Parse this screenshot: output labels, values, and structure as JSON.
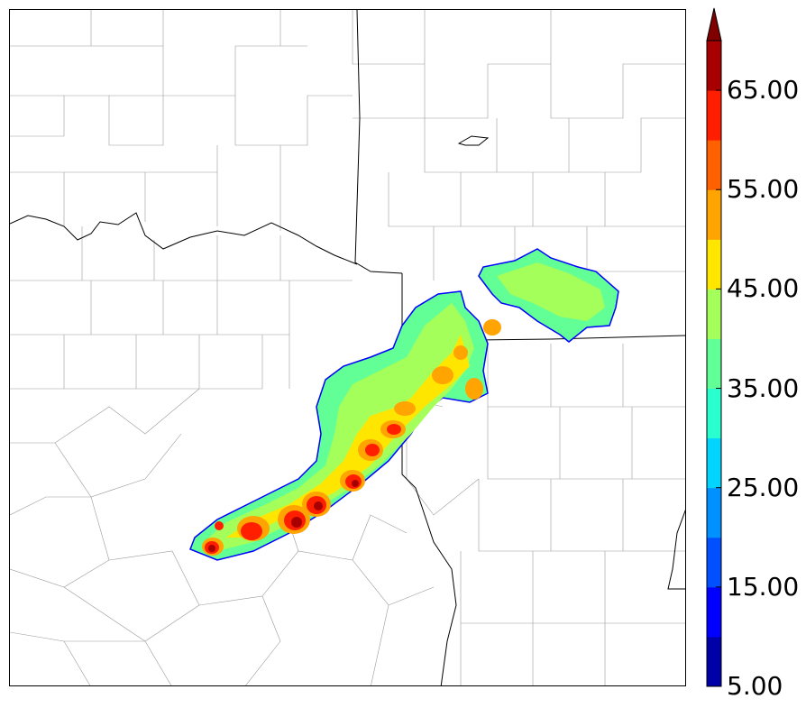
{
  "colorbar": {
    "tick_labels": [
      "5.00",
      "15.00",
      "25.00",
      "35.00",
      "45.00",
      "55.00",
      "65.00"
    ],
    "levels": [
      5,
      10,
      15,
      20,
      25,
      30,
      35,
      40,
      45,
      50,
      55,
      60,
      65,
      70
    ],
    "colors": [
      "#0000a8",
      "#0000ff",
      "#0050ff",
      "#0090ff",
      "#00d4ff",
      "#29ffce",
      "#62ff96",
      "#a5ff5a",
      "#ffe600",
      "#ffa400",
      "#ff6000",
      "#ff1e00",
      "#a80000"
    ],
    "extend_color": "#800000",
    "extend": "max"
  }
}
